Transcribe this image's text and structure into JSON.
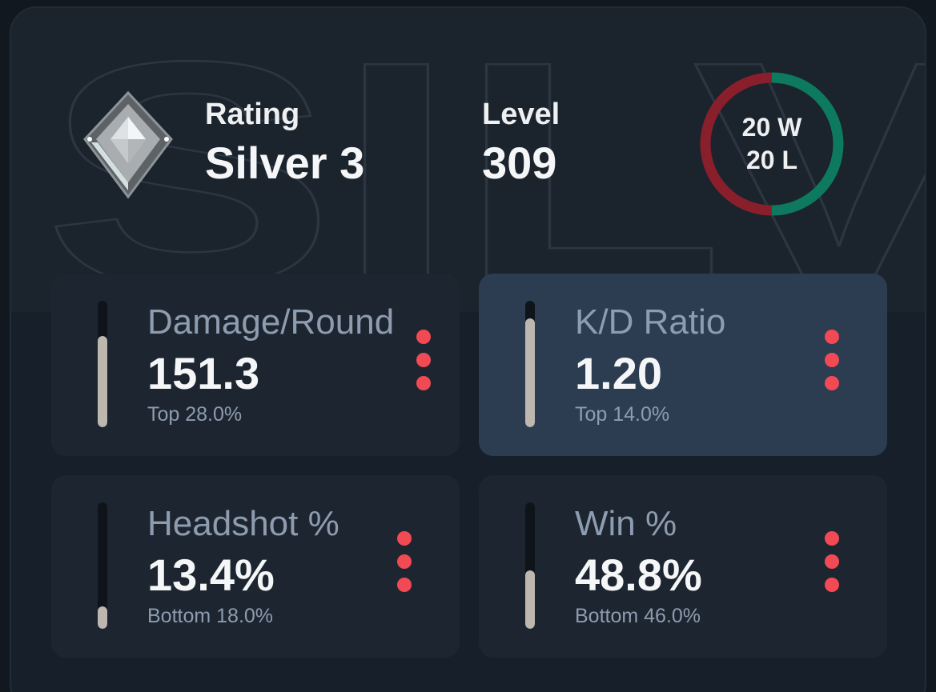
{
  "header": {
    "rating_label": "Rating",
    "rating_value": "Silver 3",
    "rank_icon": "silver-diamond-rank-icon",
    "level_label": "Level",
    "level_value": "309",
    "watermark_text": "SILV"
  },
  "record": {
    "wins": "20 W",
    "losses": "20 L",
    "win_fraction": 0.5,
    "colors": {
      "win": "#0d7a5f",
      "loss": "#8a1f2c"
    }
  },
  "stats": [
    {
      "title": "Damage/Round",
      "value": "151.3",
      "percentile": "Top 28.0%",
      "bar_fraction": 0.72
    },
    {
      "title": "K/D Ratio",
      "value": "1.20",
      "percentile": "Top 14.0%",
      "bar_fraction": 0.86
    },
    {
      "title": "Headshot %",
      "value": "13.4%",
      "percentile": "Bottom 18.0%",
      "bar_fraction": 0.18
    },
    {
      "title": "Win %",
      "value": "48.8%",
      "percentile": "Bottom 46.0%",
      "bar_fraction": 0.46
    }
  ],
  "colors": {
    "accent_dots": "#f24a55",
    "bar_fill": "#bdb7b0",
    "active_tile": "#2c3d52",
    "tile": "#1d2630"
  }
}
